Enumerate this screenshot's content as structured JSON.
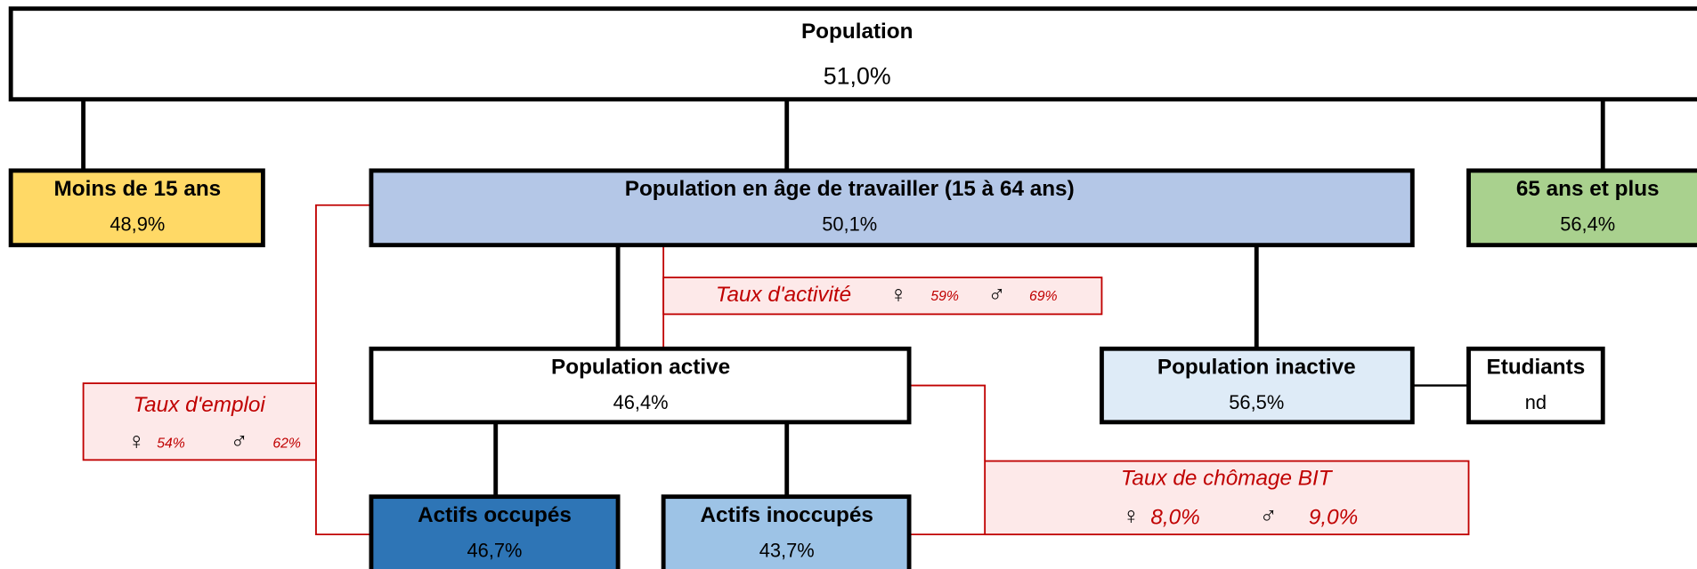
{
  "header": {
    "title": "Population",
    "value": "51,0%"
  },
  "nodes": [
    {
      "label": "Moins de 15 ans",
      "value": "48,9%"
    },
    {
      "label": "Population en âge de travailler (15 à 64 ans)",
      "value": "50,1%"
    },
    {
      "label": "65 ans et plus",
      "value": "56,4%"
    },
    {
      "label": "Population active",
      "value": "46,4%"
    },
    {
      "label": "Population inactive",
      "value": "56,5%"
    },
    {
      "label": "Etudiants",
      "value": "nd"
    },
    {
      "label": "Actifs occupés",
      "value": "46,7%"
    },
    {
      "label": "Actifs inoccupés",
      "value": "43,7%"
    }
  ],
  "rates": [
    {
      "label": "Taux d'activité",
      "female_symbol": "♀",
      "female": "59%",
      "male_symbol": "♂",
      "male": "69%"
    },
    {
      "label": "Taux d'emploi",
      "female_symbol": "♀",
      "female": "54%",
      "male_symbol": "♂",
      "male": "62%"
    },
    {
      "label": "Taux de chômage BIT",
      "female_symbol": "♀",
      "female": "8,0%",
      "male_symbol": "♂",
      "male": "9,0%"
    }
  ]
}
